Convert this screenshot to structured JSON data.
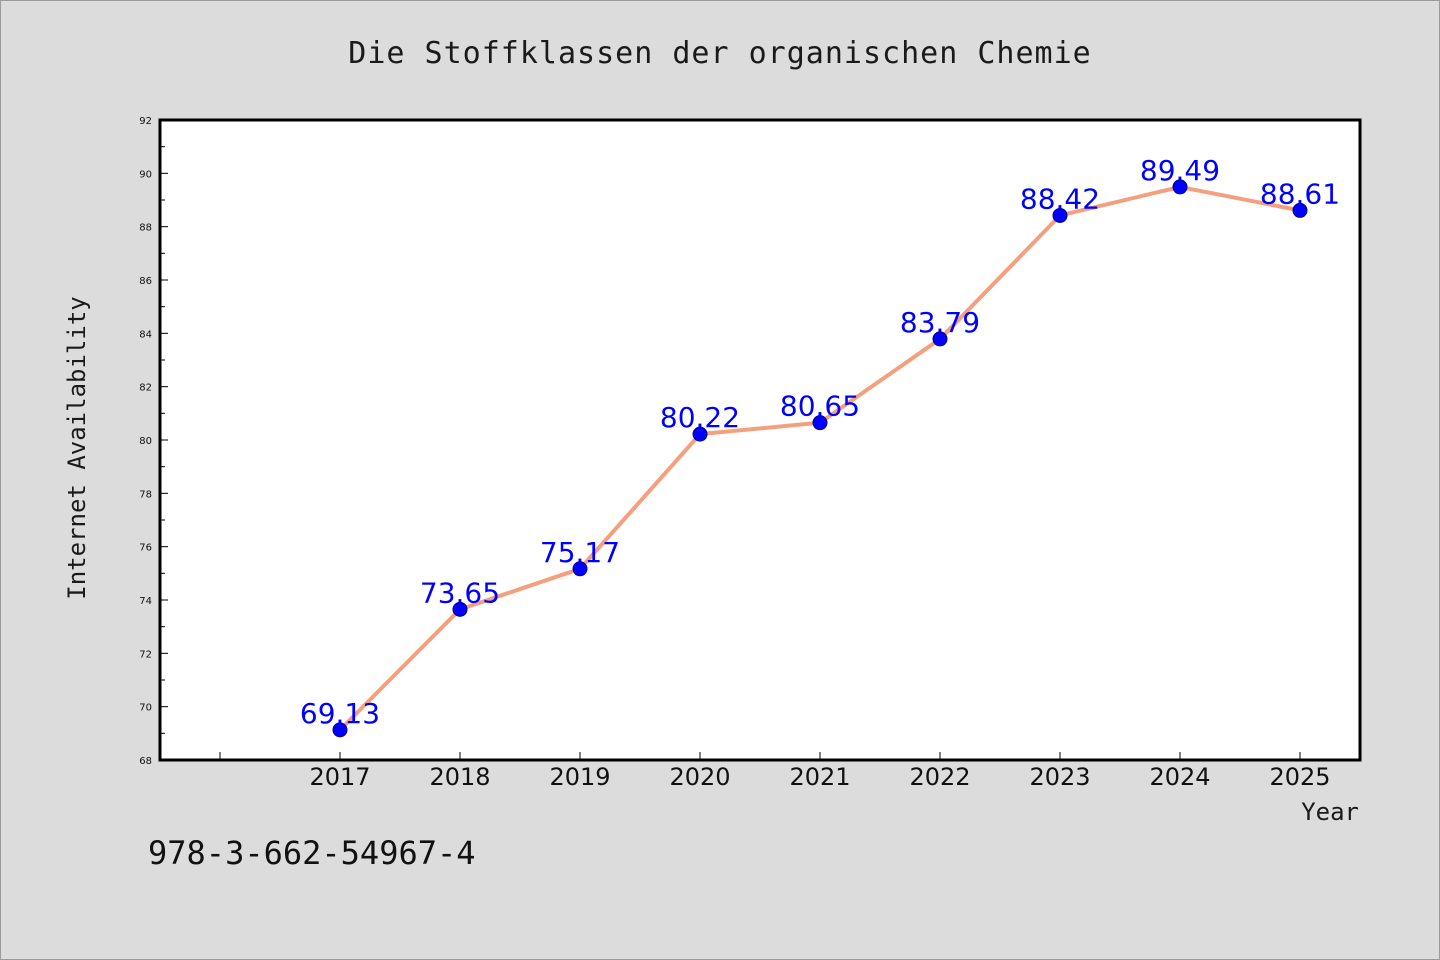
{
  "colors": {
    "background": "#dcdcdc",
    "plot_background": "#ffffff",
    "line": "#f4a07f",
    "marker": "#0000ff",
    "data_label": "#0000ff",
    "axis": "#000000"
  },
  "footer": {
    "isbn": "978-3-662-54967-4"
  },
  "chart_data": {
    "type": "line",
    "title": "Die Stoffklassen der organischen Chemie",
    "xlabel": "Year",
    "ylabel": "Internet Availability",
    "categories": [
      "2017",
      "2018",
      "2019",
      "2020",
      "2021",
      "2022",
      "2023",
      "2024",
      "2025"
    ],
    "series": [
      {
        "values": [
          69.13,
          73.65,
          75.17,
          80.22,
          80.65,
          83.79,
          88.42,
          89.49,
          88.61
        ]
      }
    ],
    "data_labels": [
      "69.13",
      "73.65",
      "75.17",
      "80.22",
      "80.65",
      "83.79",
      "88.42",
      "89.49",
      "88.61"
    ],
    "ylim": [
      68,
      92
    ],
    "yticks": [
      68,
      70,
      72,
      74,
      76,
      78,
      80,
      82,
      84,
      86,
      88,
      90,
      92
    ],
    "grid": false,
    "legend": "none",
    "markers": true
  }
}
